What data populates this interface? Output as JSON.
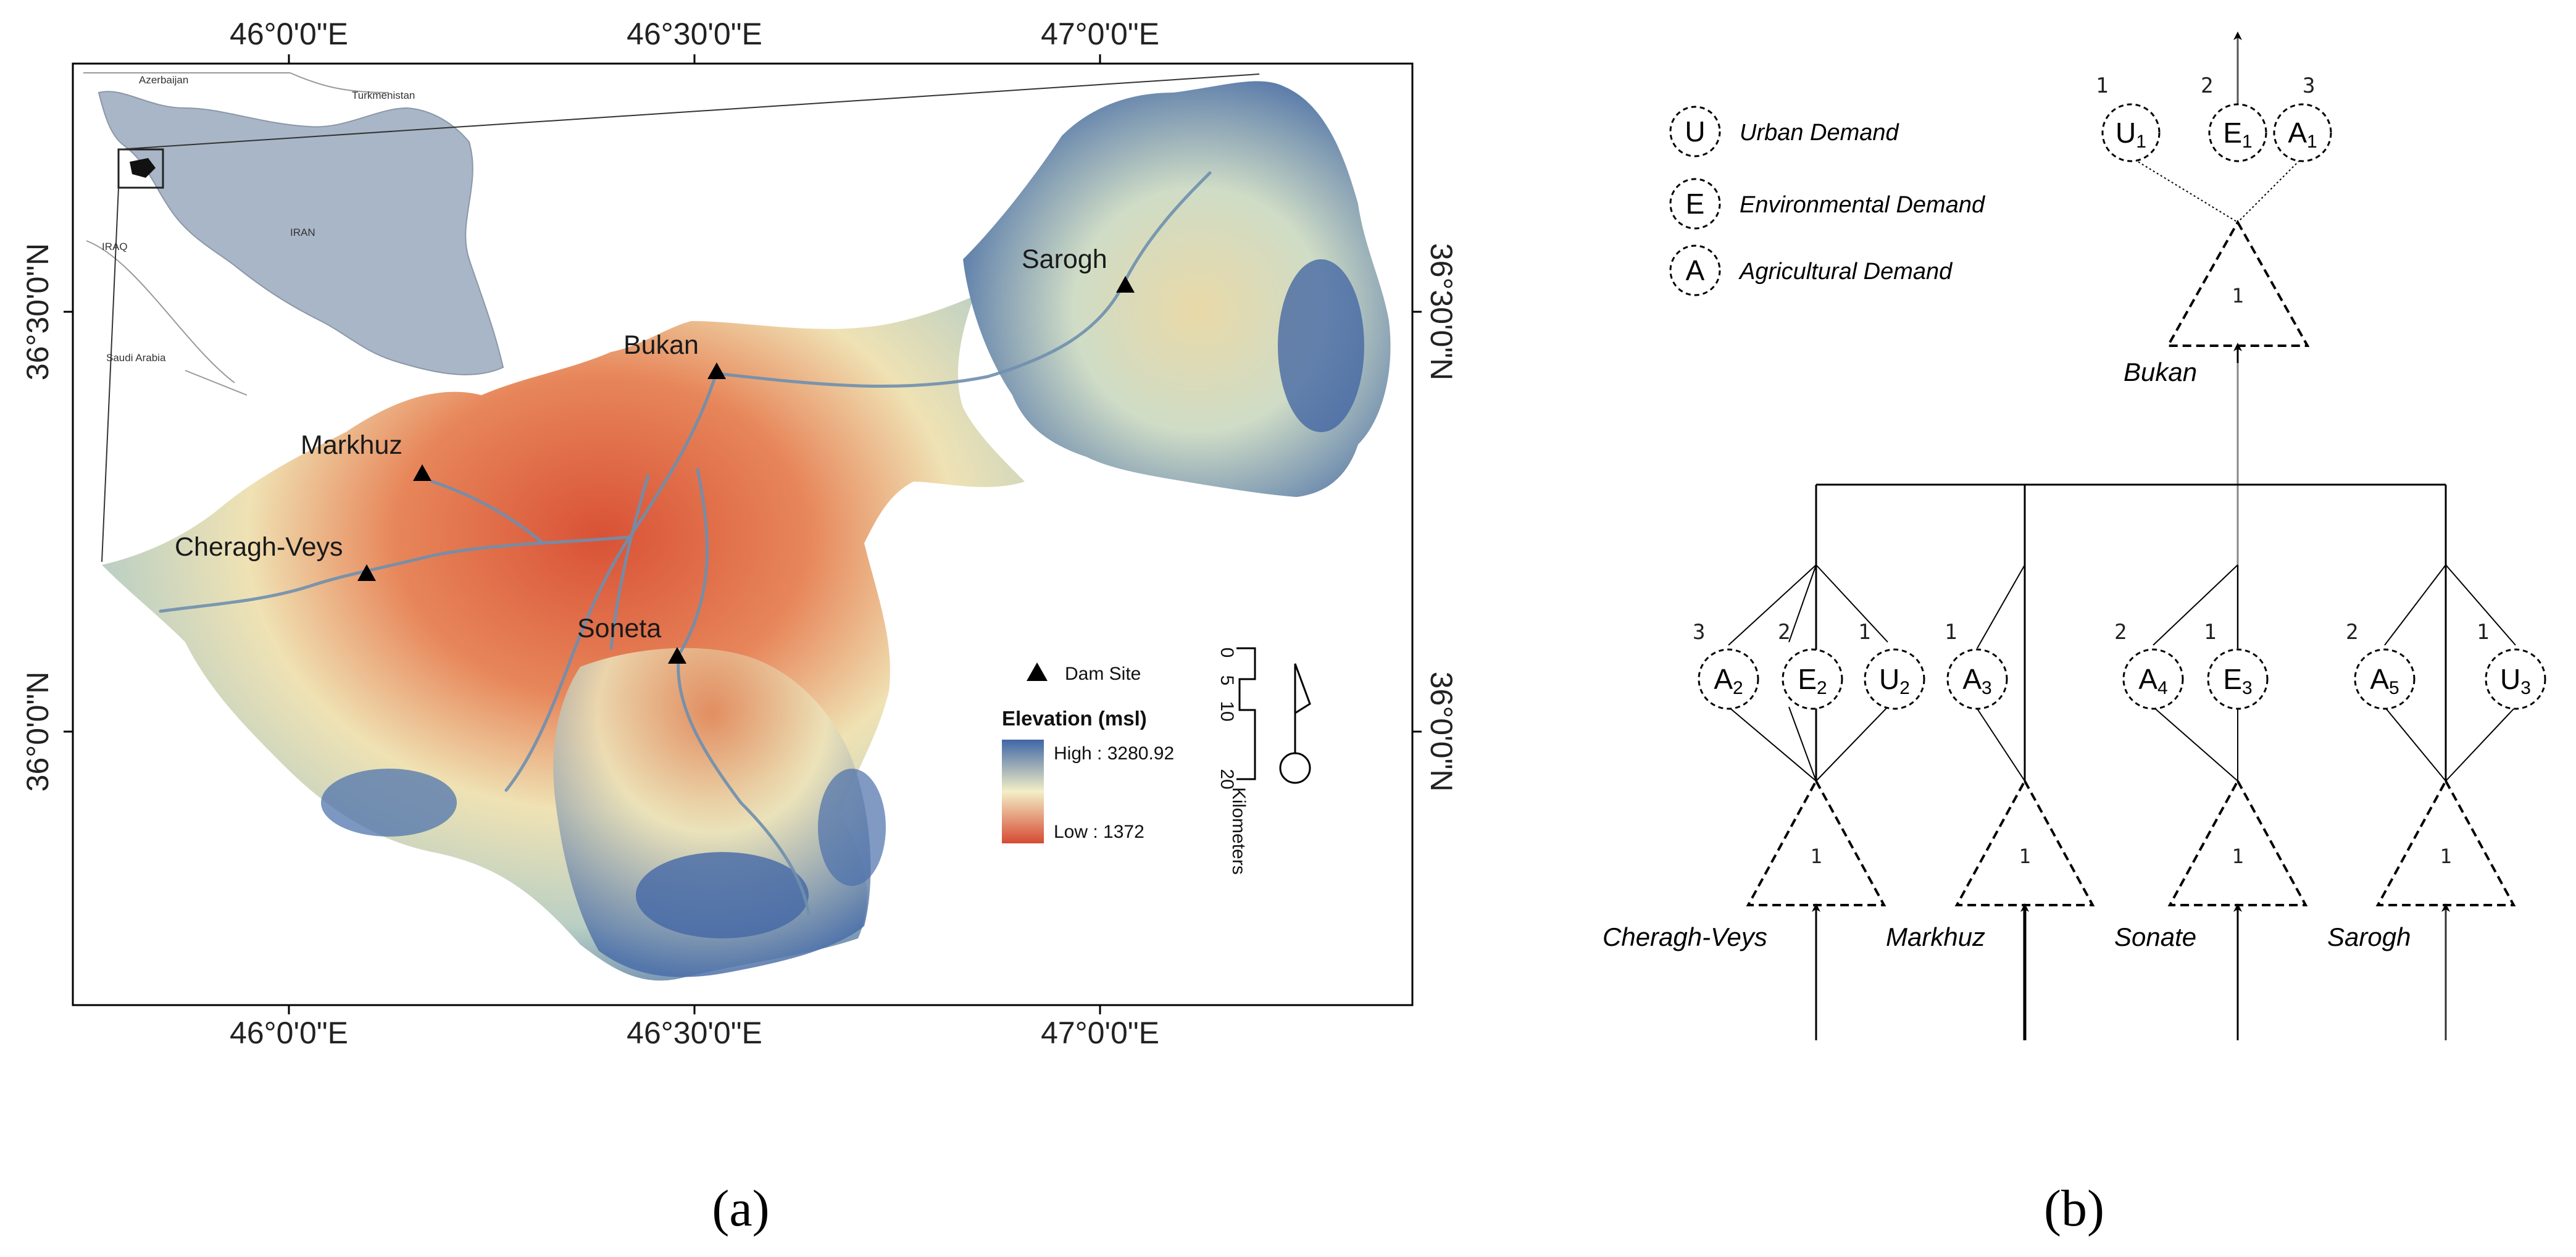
{
  "panels": {
    "a_caption": "(a)",
    "b_caption": "(b)"
  },
  "map": {
    "coords": {
      "top": [
        "46°0'0\"E",
        "46°30'0\"E",
        "47°0'0\"E"
      ],
      "bottom": [
        "46°0'0\"E",
        "46°30'0\"E",
        "47°0'0\"E"
      ],
      "left": [
        "36°30'0\"N",
        "36°0'0\"N"
      ],
      "right": [
        "36°30'0\"N",
        "36°0'0\"N"
      ]
    },
    "inset": {
      "iran": "IRAN",
      "azerbaijan": "Azerbaijan",
      "turkmenistan": "Turkmenistan",
      "iraq": "IRAQ",
      "saudi": "Saudi Arabia"
    },
    "sites": [
      "Sarogh",
      "Bukan",
      "Markhuz",
      "Cheragh-Veys",
      "Soneta"
    ],
    "legend": {
      "dam_site": "Dam Site",
      "elevation_title": "Elevation (msl)",
      "high": "High : 3280.92",
      "low": "Low : 1372"
    },
    "scale": {
      "ticks": [
        "0",
        "5",
        "10",
        "20"
      ],
      "unit": "Kilometers"
    },
    "colors": {
      "high": "#3f66a6",
      "mid": "#f3efc6",
      "low": "#d64a33",
      "river": "#7fb4c4"
    }
  },
  "scheme": {
    "legend": [
      {
        "symbol": "U",
        "label": "Urban Demand"
      },
      {
        "symbol": "E",
        "label": "Environmental Demand"
      },
      {
        "symbol": "A",
        "label": "Agricultural Demand"
      }
    ],
    "bukan": {
      "label": "Bukan",
      "tri": "1",
      "nodes": [
        {
          "base": "U",
          "sub": "1",
          "prio": "1"
        },
        {
          "base": "E",
          "sub": "1",
          "prio": "2"
        },
        {
          "base": "A",
          "sub": "1",
          "prio": "3"
        }
      ]
    },
    "dams": [
      {
        "label": "Cheragh-Veys",
        "tri": "1",
        "nodes": [
          {
            "base": "A",
            "sub": "2",
            "prio": "3"
          },
          {
            "base": "E",
            "sub": "2",
            "prio": "2"
          },
          {
            "base": "U",
            "sub": "2",
            "prio": "1"
          }
        ]
      },
      {
        "label": "Markhuz",
        "tri": "1",
        "nodes": [
          {
            "base": "A",
            "sub": "3",
            "prio": "1"
          }
        ]
      },
      {
        "label": "Sonate",
        "tri": "1",
        "nodes": [
          {
            "base": "A",
            "sub": "4",
            "prio": "2"
          },
          {
            "base": "E",
            "sub": "3",
            "prio": "1"
          }
        ]
      },
      {
        "label": "Sarogh",
        "tri": "1",
        "nodes": [
          {
            "base": "A",
            "sub": "5",
            "prio": "2"
          },
          {
            "base": "U",
            "sub": "3",
            "prio": "1"
          }
        ]
      }
    ]
  }
}
